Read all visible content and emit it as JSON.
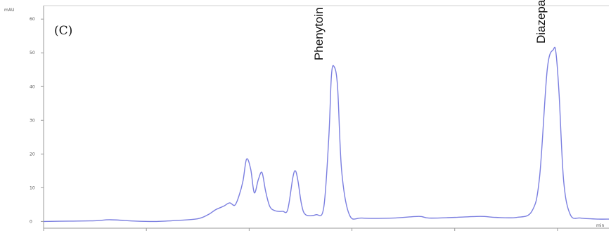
{
  "chart_data": {
    "type": "line",
    "title": "",
    "panel_label": "(C)",
    "ylabel": "mAU",
    "xlabel": "",
    "ylim": [
      -2,
      64
    ],
    "xlim": [
      0,
      11.0
    ],
    "y_ticks": [
      0,
      10,
      20,
      30,
      40,
      50,
      60
    ],
    "x_ticks": [
      0,
      2,
      4,
      6,
      8,
      10
    ],
    "x_tick_labels_visible": [],
    "x_unit_label": "min",
    "line_color": "#7b7fe0",
    "grid": false,
    "annotations": [
      {
        "text": "Phenytoin",
        "x": 5.62,
        "y": 46.5
      },
      {
        "text": "Diazepam",
        "x": 9.95,
        "y": 51.5
      }
    ],
    "series": [
      {
        "x": [
          0.0,
          0.5,
          1.0,
          1.3,
          1.8,
          2.2,
          2.6,
          3.0,
          3.2,
          3.35,
          3.5,
          3.62,
          3.72,
          3.8,
          3.88,
          3.95,
          4.03,
          4.1,
          4.18,
          4.25,
          4.32,
          4.4,
          4.5,
          4.65,
          4.75,
          4.85,
          4.9,
          4.95,
          5.02,
          5.1,
          5.3,
          5.45,
          5.55,
          5.6,
          5.65,
          5.72,
          5.8,
          5.95,
          6.2,
          6.8,
          7.3,
          7.5,
          8.0,
          8.5,
          8.8,
          9.2,
          9.5,
          9.65,
          9.8,
          9.92,
          9.97,
          10.03,
          10.12,
          10.25,
          10.45,
          10.8,
          11.0
        ],
        "values": [
          0.0,
          0.1,
          0.2,
          0.5,
          0.1,
          0.0,
          0.3,
          0.8,
          2.0,
          3.5,
          4.5,
          5.5,
          4.8,
          7.5,
          12.0,
          18.5,
          15.5,
          8.5,
          12.5,
          14.5,
          9.0,
          4.5,
          3.2,
          3.0,
          3.5,
          13.0,
          15.0,
          12.0,
          5.0,
          2.0,
          2.0,
          4.0,
          25.0,
          43.0,
          46.0,
          40.0,
          15.0,
          2.0,
          1.0,
          1.0,
          1.5,
          1.0,
          1.2,
          1.5,
          1.2,
          1.2,
          3.0,
          13.0,
          45.0,
          51.0,
          50.0,
          38.0,
          12.0,
          2.0,
          1.0,
          0.7,
          0.7
        ]
      }
    ]
  }
}
